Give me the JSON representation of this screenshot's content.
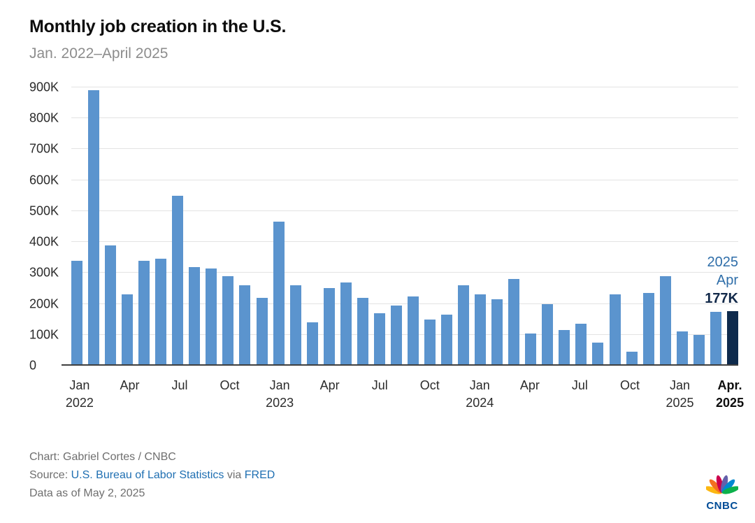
{
  "header": {
    "title": "Monthly job creation in the U.S.",
    "subtitle": "Jan. 2022–April 2025"
  },
  "chart_data": {
    "type": "bar",
    "title": "Monthly job creation in the U.S.",
    "subtitle": "Jan. 2022–April 2025",
    "unit": "thousands of jobs (K)",
    "ymax": 900,
    "ylim": [
      0,
      900
    ],
    "grid": "horizontal",
    "y_ticks": [
      {
        "value": 0,
        "label": "0"
      },
      {
        "value": 100,
        "label": "100K"
      },
      {
        "value": 200,
        "label": "200K"
      },
      {
        "value": 300,
        "label": "300K"
      },
      {
        "value": 400,
        "label": "400K"
      },
      {
        "value": 500,
        "label": "500K"
      },
      {
        "value": 600,
        "label": "600K"
      },
      {
        "value": 700,
        "label": "700K"
      },
      {
        "value": 800,
        "label": "800K"
      },
      {
        "value": 900,
        "label": "900K"
      }
    ],
    "x": [
      "Jan 2022",
      "Feb 2022",
      "Mar 2022",
      "Apr 2022",
      "May 2022",
      "Jun 2022",
      "Jul 2022",
      "Aug 2022",
      "Sep 2022",
      "Oct 2022",
      "Nov 2022",
      "Dec 2022",
      "Jan 2023",
      "Feb 2023",
      "Mar 2023",
      "Apr 2023",
      "May 2023",
      "Jun 2023",
      "Jul 2023",
      "Aug 2023",
      "Sep 2023",
      "Oct 2023",
      "Nov 2023",
      "Dec 2023",
      "Jan 2024",
      "Feb 2024",
      "Mar 2024",
      "Apr 2024",
      "May 2024",
      "Jun 2024",
      "Jul 2024",
      "Aug 2024",
      "Sep 2024",
      "Oct 2024",
      "Nov 2024",
      "Dec 2024",
      "Jan 2025",
      "Feb 2025",
      "Mar 2025",
      "Apr 2025"
    ],
    "values": [
      340,
      890,
      390,
      230,
      340,
      345,
      550,
      320,
      315,
      290,
      260,
      220,
      465,
      260,
      140,
      250,
      270,
      220,
      170,
      195,
      225,
      150,
      165,
      260,
      230,
      215,
      280,
      105,
      200,
      115,
      135,
      75,
      230,
      45,
      235,
      290,
      110,
      100,
      175,
      177
    ],
    "highlight_index": 39,
    "annotation": {
      "year": "2025",
      "month": "Apr",
      "value": "177K"
    },
    "x_ticks": [
      {
        "index": 0,
        "month": "Jan",
        "year": "2022",
        "bold": false
      },
      {
        "index": 3,
        "month": "Apr",
        "year": "",
        "bold": false
      },
      {
        "index": 6,
        "month": "Jul",
        "year": "",
        "bold": false
      },
      {
        "index": 9,
        "month": "Oct",
        "year": "",
        "bold": false
      },
      {
        "index": 12,
        "month": "Jan",
        "year": "2023",
        "bold": false
      },
      {
        "index": 15,
        "month": "Apr",
        "year": "",
        "bold": false
      },
      {
        "index": 18,
        "month": "Jul",
        "year": "",
        "bold": false
      },
      {
        "index": 21,
        "month": "Oct",
        "year": "",
        "bold": false
      },
      {
        "index": 24,
        "month": "Jan",
        "year": "2024",
        "bold": false
      },
      {
        "index": 27,
        "month": "Apr",
        "year": "",
        "bold": false
      },
      {
        "index": 30,
        "month": "Jul",
        "year": "",
        "bold": false
      },
      {
        "index": 33,
        "month": "Oct",
        "year": "",
        "bold": false
      },
      {
        "index": 36,
        "month": "Jan",
        "year": "2025",
        "bold": false
      },
      {
        "index": 39,
        "month": "Apr.",
        "year": "2025",
        "bold": true
      }
    ],
    "legend": "none"
  },
  "colors": {
    "bar": "#5b94ce",
    "bar_highlight": "#0e2a4c",
    "annotation_blue": "#2f6ea9",
    "annotation_dark": "#12294a",
    "link": "#1f6fb2",
    "gridline": "#e3e3e3",
    "axis": "#3f3f3f"
  },
  "footer": {
    "credit": "Chart: Gabriel Cortes / CNBC",
    "source_prefix": "Source:",
    "source_link1": "U.S. Bureau of Labor Statistics",
    "source_mid": "via",
    "source_link2": "FRED",
    "data_as_of": "Data as of May 2, 2025",
    "logo_text": "CNBC"
  }
}
